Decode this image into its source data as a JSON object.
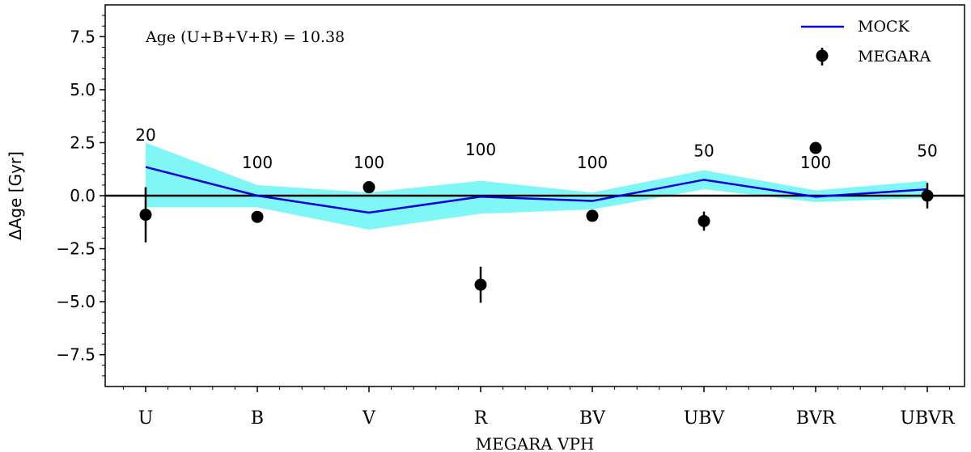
{
  "chart_data": {
    "type": "line",
    "xlabel": "MEGARA VPH",
    "ylabel": "ΔAge [Gyr]",
    "ylim": [
      -9.0,
      9.0
    ],
    "yticks": [
      -7.5,
      -5.0,
      -2.5,
      0.0,
      2.5,
      5.0,
      7.5
    ],
    "ytick_labels": [
      "−7.5",
      "−5.0",
      "−2.5",
      "0.0",
      "2.5",
      "5.0",
      "7.5"
    ],
    "categories": [
      "U",
      "B",
      "V",
      "R",
      "BV",
      "UBV",
      "BVR",
      "UBVR"
    ],
    "annotation": "Age (U+B+V+R) = 10.38",
    "reference_line": 0.0,
    "series": [
      {
        "name": "MOCK",
        "kind": "line",
        "color": "#0000dd",
        "values": [
          1.35,
          0.0,
          -0.8,
          -0.05,
          -0.25,
          0.75,
          -0.05,
          0.3
        ],
        "band_upper": [
          2.5,
          0.5,
          0.15,
          0.7,
          0.15,
          1.2,
          0.25,
          0.7
        ],
        "band_lower": [
          -0.55,
          -0.55,
          -1.6,
          -0.85,
          -0.65,
          0.3,
          -0.3,
          -0.1
        ],
        "band_color": "#7ff7f7"
      },
      {
        "name": "MEGARA",
        "kind": "errorbar",
        "color": "#000000",
        "values": [
          -0.9,
          -1.0,
          0.4,
          -4.2,
          -0.95,
          -1.2,
          2.25,
          0.0
        ],
        "errors": [
          1.3,
          0.0,
          0.0,
          0.85,
          0.0,
          0.45,
          0.0,
          0.6
        ]
      }
    ],
    "point_labels": [
      {
        "text": "20",
        "y": 2.6
      },
      {
        "text": "100",
        "y": 1.3
      },
      {
        "text": "100",
        "y": 1.3
      },
      {
        "text": "100",
        "y": 1.9
      },
      {
        "text": "100",
        "y": 1.3
      },
      {
        "text": "50",
        "y": 1.85
      },
      {
        "text": "100",
        "y": 1.3
      },
      {
        "text": "50",
        "y": 1.85
      }
    ],
    "legend": {
      "position": "top-right",
      "entries": [
        {
          "label": "MOCK",
          "marker": "line"
        },
        {
          "label": "MEGARA",
          "marker": "point-errorbar"
        }
      ]
    }
  }
}
